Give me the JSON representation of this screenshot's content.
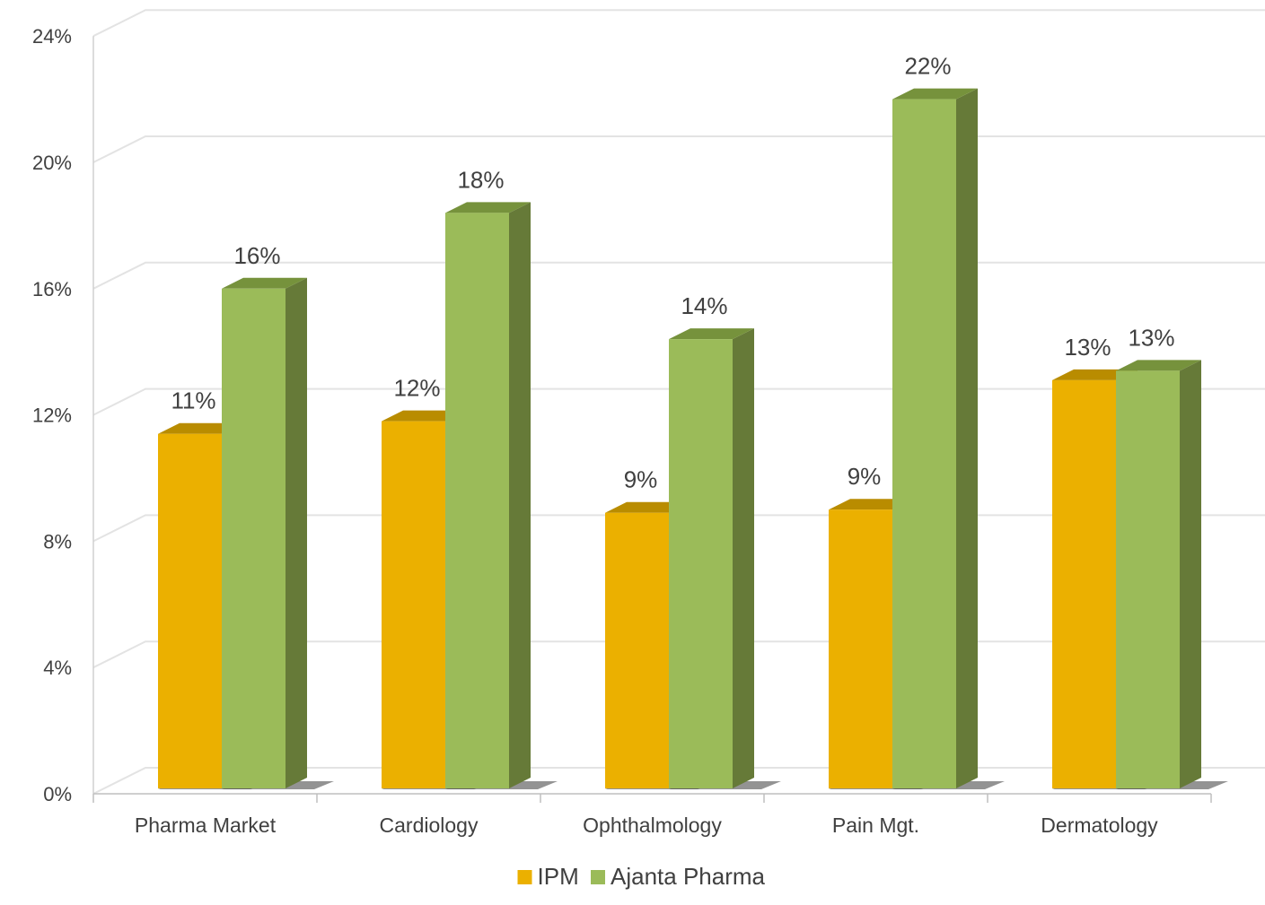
{
  "chart_data": {
    "type": "bar",
    "style": "3d-clustered-column",
    "categories": [
      "Pharma Market",
      "Cardiology",
      "Ophthalmology",
      "Pain Mgt.",
      "Dermatology"
    ],
    "series": [
      {
        "name": "IPM",
        "values": [
          11.4,
          11.8,
          8.9,
          9.0,
          13.1
        ],
        "labels": [
          "11%",
          "12%",
          "9%",
          "9%",
          "13%"
        ],
        "colors": {
          "front": "#EBB000",
          "top": "#B98C00",
          "side": "#9C7500"
        }
      },
      {
        "name": "Ajanta Pharma",
        "values": [
          16.0,
          18.4,
          14.4,
          22.0,
          13.4
        ],
        "labels": [
          "16%",
          "18%",
          "14%",
          "22%",
          "13%"
        ],
        "colors": {
          "front": "#9BBB59",
          "top": "#76923C",
          "side": "#667A38"
        }
      }
    ],
    "y_ticks": [
      "0%",
      "4%",
      "8%",
      "12%",
      "16%",
      "20%",
      "24%"
    ],
    "ylim": [
      0,
      24
    ],
    "y_step": 4,
    "grid": true,
    "legend_position": "bottom"
  }
}
